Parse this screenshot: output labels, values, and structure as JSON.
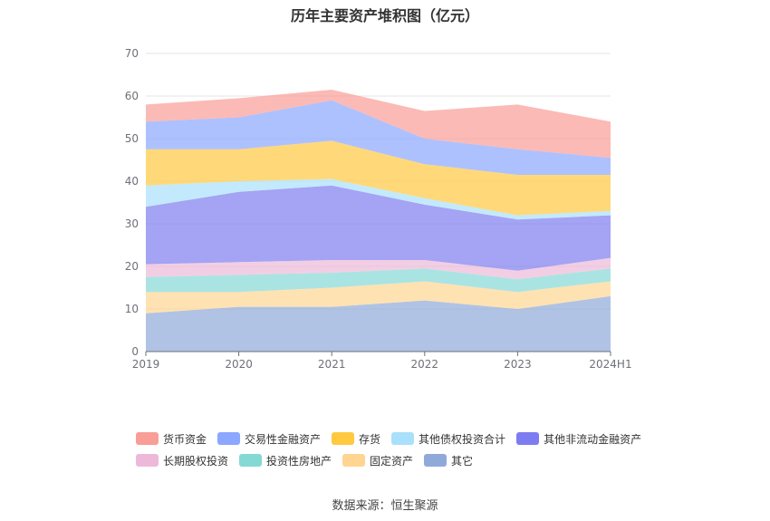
{
  "chart_data": {
    "type": "area",
    "stacked": true,
    "title": "历年主要资产堆积图（亿元）",
    "categories": [
      "2019",
      "2020",
      "2021",
      "2022",
      "2023",
      "2024H1"
    ],
    "ylim": [
      0,
      70
    ],
    "yticks": [
      "0",
      "10",
      "20",
      "30",
      "40",
      "50",
      "60",
      "70"
    ],
    "grid": true,
    "legend_position": "bottom",
    "series": [
      {
        "name": "其它",
        "color": "#8fa9d9",
        "values": [
          9.0,
          10.5,
          10.5,
          12.0,
          10.0,
          13.0
        ]
      },
      {
        "name": "固定资产",
        "color": "#ffd591",
        "values": [
          5.0,
          3.5,
          4.5,
          4.5,
          4.0,
          3.5
        ]
      },
      {
        "name": "投资性房地产",
        "color": "#84d9d5",
        "values": [
          3.5,
          4.0,
          3.5,
          3.0,
          3.0,
          3.0
        ]
      },
      {
        "name": "长期股权投资",
        "color": "#edb9d9",
        "values": [
          3.0,
          3.0,
          3.0,
          2.0,
          2.0,
          2.5
        ]
      },
      {
        "name": "其他非流动金融资产",
        "color": "#7d7cf0",
        "values": [
          13.5,
          16.5,
          17.5,
          13.0,
          12.0,
          10.0
        ]
      },
      {
        "name": "其他债权投资合计",
        "color": "#a9e0fb",
        "values": [
          5.0,
          2.5,
          1.5,
          1.5,
          1.0,
          1.0
        ]
      },
      {
        "name": "存货",
        "color": "#ffc940",
        "values": [
          8.5,
          7.5,
          9.0,
          8.0,
          9.5,
          8.5
        ]
      },
      {
        "name": "交易性金融资产",
        "color": "#8ba7ff",
        "values": [
          6.5,
          7.5,
          9.5,
          6.0,
          6.0,
          4.0
        ]
      },
      {
        "name": "货币资金",
        "color": "#f99d97",
        "values": [
          4.0,
          4.5,
          2.5,
          6.5,
          10.5,
          8.5
        ]
      }
    ]
  },
  "legend": {
    "row1": [
      {
        "label": "货币资金",
        "color": "#f99d97"
      },
      {
        "label": "交易性金融资产",
        "color": "#8ba7ff"
      },
      {
        "label": "存货",
        "color": "#ffc940"
      },
      {
        "label": "其他债权投资合计",
        "color": "#a9e0fb"
      },
      {
        "label": "其他非流动金融资产",
        "color": "#7d7cf0"
      }
    ],
    "row2": [
      {
        "label": "长期股权投资",
        "color": "#edb9d9"
      },
      {
        "label": "投资性房地产",
        "color": "#84d9d5"
      },
      {
        "label": "固定资产",
        "color": "#ffd591"
      },
      {
        "label": "其它",
        "color": "#8fa9d9"
      }
    ]
  },
  "source": "数据来源：恒生聚源"
}
